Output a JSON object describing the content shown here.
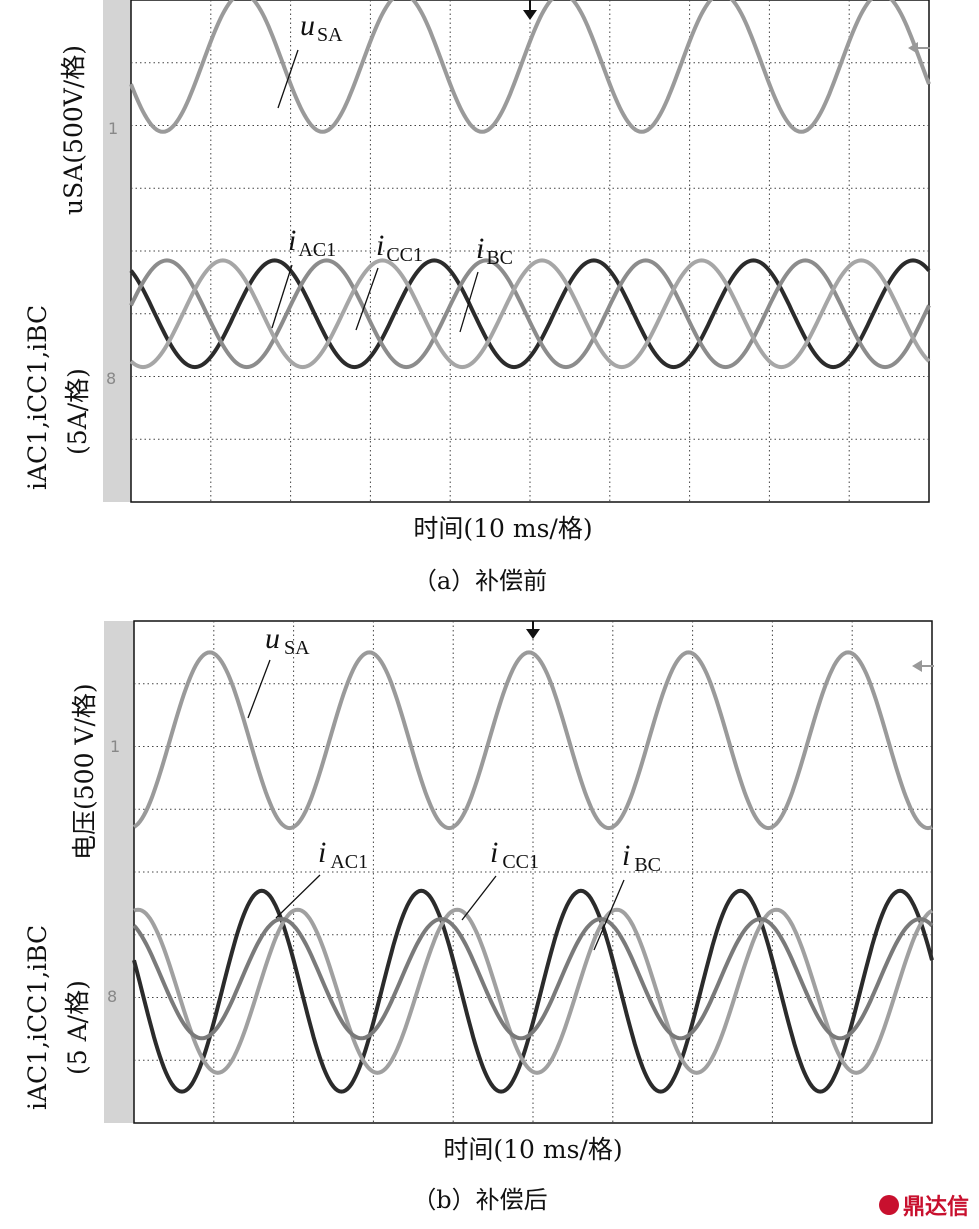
{
  "chart_data": [
    {
      "type": "line",
      "panel": "a",
      "caption": "（a）补偿前",
      "xlabel": "时间(10 ms/格)",
      "ylabel_top": "uSA(500V/格)",
      "ylabel_bottom_line1": "iAC1,iCC1,iBC",
      "ylabel_bottom_line2": "(5A/格)",
      "grid": true,
      "x_divisions": 10,
      "y_divisions": 8,
      "marker_ch1": "1",
      "marker_ch2": "8",
      "series": [
        {
          "name": "uSA",
          "color": "#9a9a9a",
          "amplitude_div": 1.1,
          "center_div": 1.0,
          "period_div": 2.0,
          "phase_div": 1.4
        },
        {
          "name": "iAC1",
          "color": "#2b2b2b",
          "amplitude_div": 0.85,
          "center_div": 5.0,
          "period_div": 2.0,
          "phase_div": 1.8
        },
        {
          "name": "iCC1",
          "color": "#8c8c8c",
          "amplitude_div": 0.85,
          "center_div": 5.0,
          "period_div": 2.0,
          "phase_div": 0.45
        },
        {
          "name": "iBC",
          "color": "#a6a6a6",
          "amplitude_div": 0.85,
          "center_div": 5.0,
          "period_div": 2.0,
          "phase_div": 1.15
        }
      ],
      "labels": [
        {
          "main": "u",
          "sub": "SA"
        },
        {
          "main": "i",
          "sub": "AC1"
        },
        {
          "main": "i",
          "sub": "CC1"
        },
        {
          "main": "i",
          "sub": "BC"
        }
      ]
    },
    {
      "type": "line",
      "panel": "b",
      "caption": "（b）补偿后",
      "xlabel": "时间(10 ms/格)",
      "ylabel_top": "电压(500 V/格)",
      "ylabel_bottom_line1": "iAC1,iCC1,iBC",
      "ylabel_bottom_line2": "(5 A/格)",
      "grid": true,
      "x_divisions": 10,
      "y_divisions": 8,
      "marker_ch1": "1",
      "marker_ch2": "8",
      "series": [
        {
          "name": "uSA",
          "color": "#9a9a9a",
          "amplitude_div": 1.4,
          "center_div": 1.9,
          "period_div": 2.0,
          "phase_div": 0.95
        },
        {
          "name": "iAC1",
          "color": "#2b2b2b",
          "amplitude_div": 1.6,
          "center_div": 5.9,
          "period_div": 2.0,
          "phase_div": 1.6
        },
        {
          "name": "iCC1",
          "color": "#a0a0a0",
          "amplitude_div": 1.3,
          "center_div": 5.9,
          "period_div": 2.0,
          "phase_div": 0.05
        },
        {
          "name": "iBC",
          "color": "#7a7a7a",
          "amplitude_div": 0.95,
          "center_div": 5.7,
          "period_div": 2.0,
          "phase_div": 1.85
        }
      ],
      "labels": [
        {
          "main": "u",
          "sub": "SA"
        },
        {
          "main": "i",
          "sub": "AC1"
        },
        {
          "main": "i",
          "sub": "CC1"
        },
        {
          "main": "i",
          "sub": "BC"
        }
      ]
    }
  ],
  "watermark": "鼎达信"
}
